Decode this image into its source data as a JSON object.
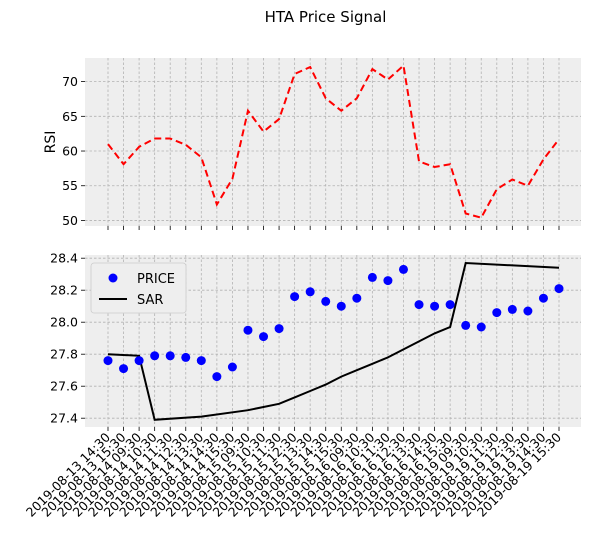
{
  "chart_data": [
    {
      "type": "line",
      "title": "HTA Price Signal",
      "ylabel": "RSI",
      "xlabel": "",
      "ylim": [
        49.2,
        73.4
      ],
      "yticks": [
        50,
        55,
        60,
        65,
        70
      ],
      "grid": true,
      "series": [
        {
          "color": "#ff0000",
          "style": "dashed",
          "values": [
            61.0,
            58.1,
            60.6,
            61.8,
            61.8,
            60.9,
            59.1,
            52.3,
            56.0,
            65.8,
            62.8,
            64.6,
            71.1,
            72.1,
            67.6,
            65.8,
            67.6,
            71.8,
            70.3,
            72.3,
            58.5,
            57.7,
            58.1,
            51.0,
            50.4,
            54.5,
            55.9,
            55.0,
            58.8,
            61.7
          ]
        }
      ]
    },
    {
      "type": "line",
      "ylim": [
        27.345,
        28.42
      ],
      "yticks": [
        27.4,
        27.6,
        27.8,
        28.0,
        28.2,
        28.4
      ],
      "grid": true,
      "legend_position": "top-left",
      "x": [
        "2019-08-13 14:30",
        "2019-08-13 15:30",
        "2019-08-14 09:30",
        "2019-08-14 10:30",
        "2019-08-14 11:30",
        "2019-08-14 12:30",
        "2019-08-14 13:30",
        "2019-08-14 14:30",
        "2019-08-14 15:30",
        "2019-08-15 09:30",
        "2019-08-15 10:30",
        "2019-08-15 11:30",
        "2019-08-15 12:30",
        "2019-08-15 13:30",
        "2019-08-15 14:30",
        "2019-08-15 15:30",
        "2019-08-16 09:30",
        "2019-08-16 10:30",
        "2019-08-16 11:30",
        "2019-08-16 12:30",
        "2019-08-16 13:30",
        "2019-08-16 14:30",
        "2019-08-16 15:30",
        "2019-08-19 09:30",
        "2019-08-19 10:30",
        "2019-08-19 11:30",
        "2019-08-19 12:30",
        "2019-08-19 13:30",
        "2019-08-19 14:30",
        "2019-08-19 15:30"
      ],
      "series": [
        {
          "name": "PRICE",
          "color": "#0000ff",
          "style": "markers",
          "values": [
            27.76,
            27.71,
            27.76,
            27.79,
            27.79,
            27.78,
            27.76,
            27.66,
            27.72,
            27.95,
            27.91,
            27.96,
            28.16,
            28.19,
            28.13,
            28.1,
            28.15,
            28.28,
            28.26,
            28.33,
            28.11,
            28.1,
            28.11,
            27.98,
            27.97,
            28.06,
            28.08,
            28.07,
            28.15,
            28.21
          ]
        },
        {
          "name": "SAR",
          "color": "#000000",
          "style": "solid",
          "values": [
            27.8,
            null,
            27.79,
            27.39,
            null,
            null,
            27.41,
            null,
            null,
            27.45,
            null,
            27.49,
            27.53,
            27.57,
            27.61,
            27.66,
            27.7,
            27.74,
            27.78,
            27.83,
            27.88,
            27.93,
            27.97,
            28.37,
            null,
            null,
            null,
            null,
            null,
            28.34
          ]
        }
      ]
    }
  ]
}
